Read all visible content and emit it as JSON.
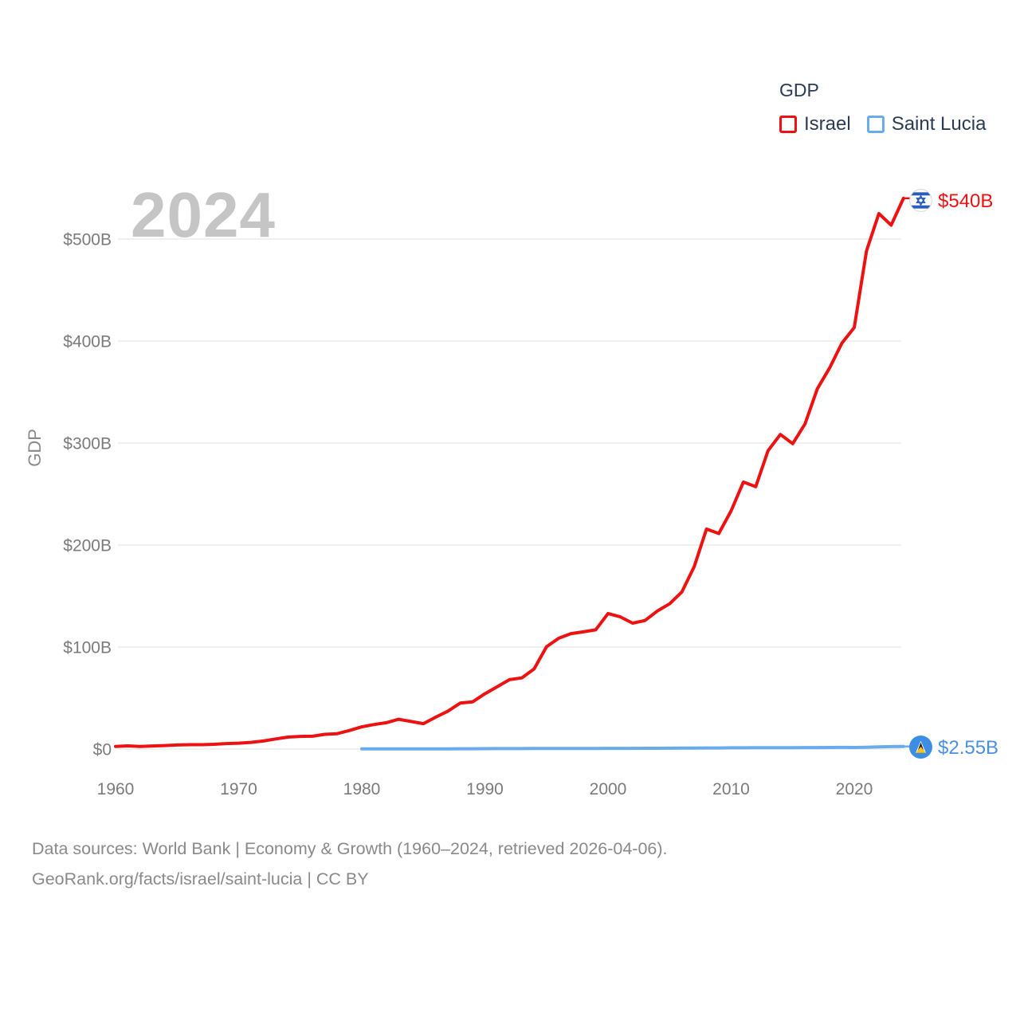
{
  "watermark": "2024",
  "legend": {
    "title": "GDP",
    "items": [
      {
        "label": "Israel",
        "color": "#ee1111"
      },
      {
        "label": "Saint Lucia",
        "color": "#6aabee"
      }
    ]
  },
  "footer": {
    "line1": "Data sources: World Bank | Economy & Growth (1960–2024, retrieved 2026-04-06).",
    "line2": "GeoRank.org/facts/israel/saint-lucia | CC BY"
  },
  "chart_data": {
    "type": "line",
    "title": "GDP",
    "xlabel": "",
    "ylabel": "GDP",
    "xlim": [
      1960,
      2024
    ],
    "ylim": [
      0,
      500
    ],
    "grid": true,
    "legend_position": "top-right",
    "x_ticks": [
      1960,
      1970,
      1980,
      1990,
      2000,
      2010,
      2020
    ],
    "y_ticks": [
      {
        "value": 0,
        "label": "$0"
      },
      {
        "value": 100,
        "label": "$100B"
      },
      {
        "value": 200,
        "label": "$200B"
      },
      {
        "value": 300,
        "label": "$300B"
      },
      {
        "value": 400,
        "label": "$400B"
      },
      {
        "value": 500,
        "label": "$500B"
      }
    ],
    "series": [
      {
        "name": "Israel",
        "color": "#ee1111",
        "end_label": "$540B",
        "end_value": 540,
        "flag": "israel-flag",
        "x": [
          1960,
          1961,
          1962,
          1963,
          1964,
          1965,
          1966,
          1967,
          1968,
          1969,
          1970,
          1971,
          1972,
          1973,
          1974,
          1975,
          1976,
          1977,
          1978,
          1979,
          1980,
          1981,
          1982,
          1983,
          1984,
          1985,
          1986,
          1987,
          1988,
          1989,
          1990,
          1991,
          1992,
          1993,
          1994,
          1995,
          1996,
          1997,
          1998,
          1999,
          2000,
          2001,
          2002,
          2003,
          2004,
          2005,
          2006,
          2007,
          2008,
          2009,
          2010,
          2011,
          2012,
          2013,
          2014,
          2015,
          2016,
          2017,
          2018,
          2019,
          2020,
          2021,
          2022,
          2023,
          2024
        ],
        "values": [
          2.6,
          3.12,
          2.53,
          3.01,
          3.44,
          3.95,
          4.27,
          4.26,
          4.67,
          5.37,
          5.81,
          6.54,
          7.88,
          9.91,
          11.69,
          12.45,
          12.57,
          14.45,
          15.06,
          18.18,
          21.8,
          24.09,
          25.86,
          29.22,
          27.07,
          24.91,
          31.23,
          37.2,
          45.04,
          46.24,
          54.24,
          61.12,
          68.01,
          69.74,
          78.59,
          100.34,
          108.67,
          113.22,
          114.96,
          116.9,
          132.88,
          129.62,
          123.4,
          125.98,
          135.33,
          142.46,
          154.08,
          178.67,
          215.73,
          211.34,
          233.61,
          261.77,
          257.3,
          292.49,
          308.42,
          299.41,
          318.78,
          353.27,
          373.64,
          397.94,
          413.27,
          488.53,
          525.0,
          513.61,
          540.0
        ]
      },
      {
        "name": "Saint Lucia",
        "color": "#6aabee",
        "end_label": "$2.55B",
        "end_value": 2.55,
        "flag": "saint-lucia-flag",
        "x": [
          1980,
          1981,
          1982,
          1983,
          1984,
          1985,
          1986,
          1987,
          1988,
          1989,
          1990,
          1991,
          1992,
          1993,
          1994,
          1995,
          1996,
          1997,
          1998,
          1999,
          2000,
          2001,
          2002,
          2003,
          2004,
          2005,
          2006,
          2007,
          2008,
          2009,
          2010,
          2011,
          2012,
          2013,
          2014,
          2015,
          2016,
          2017,
          2018,
          2019,
          2020,
          2021,
          2022,
          2023,
          2024
        ],
        "values": [
          0.13,
          0.15,
          0.16,
          0.17,
          0.19,
          0.21,
          0.24,
          0.26,
          0.3,
          0.32,
          0.4,
          0.43,
          0.46,
          0.48,
          0.51,
          0.54,
          0.55,
          0.58,
          0.62,
          0.66,
          0.71,
          0.68,
          0.69,
          0.76,
          0.82,
          0.87,
          0.97,
          1.05,
          1.11,
          1.08,
          1.24,
          1.28,
          1.29,
          1.34,
          1.4,
          1.44,
          1.47,
          1.51,
          1.59,
          1.66,
          1.54,
          1.77,
          2.09,
          2.41,
          2.55
        ]
      }
    ]
  }
}
